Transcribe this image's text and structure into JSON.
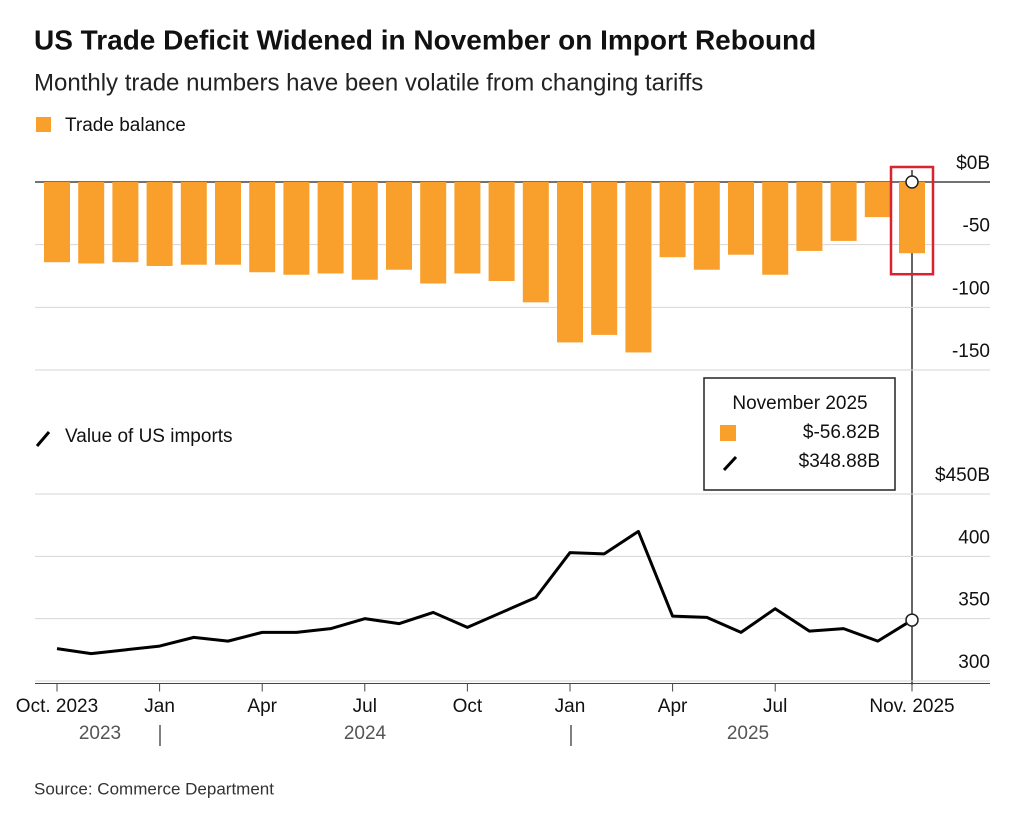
{
  "title": "US Trade Deficit Widened in November on Import Rebound",
  "subtitle": "Monthly trade numbers have been volatile from changing tariffs",
  "source": "Source: Commerce Department",
  "tooltip_title": "November 2025",
  "chart_data": [
    {
      "type": "bar",
      "series": [
        {
          "name": "Trade balance",
          "color": "#f9a02c",
          "values": [
            -64,
            -65,
            -64,
            -67,
            -66,
            -66,
            -72,
            -74,
            -73,
            -78,
            -70,
            -81,
            -73,
            -79,
            -96,
            -128,
            -122,
            -136,
            -60,
            -70,
            -58,
            -74,
            -55,
            -47,
            -28,
            -56.82
          ],
          "value_labels": [
            null,
            null,
            null,
            null,
            null,
            null,
            null,
            null,
            null,
            null,
            null,
            null,
            null,
            null,
            null,
            null,
            null,
            null,
            null,
            null,
            null,
            null,
            null,
            null,
            null,
            "$-56.82B"
          ]
        }
      ],
      "ylim": [
        -150,
        0
      ],
      "yticks": [
        {
          "value": 0,
          "label": "$0B"
        },
        -50,
        -100,
        -150
      ],
      "grid": true
    },
    {
      "type": "line",
      "categories": [
        "Oct. 2023",
        null,
        null,
        "Jan",
        null,
        null,
        "Apr",
        null,
        null,
        "Jul",
        null,
        null,
        "Oct",
        null,
        null,
        "Jan",
        null,
        null,
        "Apr",
        null,
        null,
        "Jul",
        null,
        null,
        null,
        "Nov. 2025"
      ],
      "year_labels": [
        "2023",
        "2024",
        "2025"
      ],
      "series": [
        {
          "name": "Value of US imports",
          "color": "#000000",
          "values": [
            326,
            322,
            325,
            328,
            335,
            332,
            339,
            339,
            342,
            350,
            346,
            355,
            343,
            355,
            367,
            403,
            402,
            420,
            352,
            351,
            339,
            358,
            340,
            342,
            332,
            348.88
          ],
          "value_labels": [
            null,
            null,
            null,
            null,
            null,
            null,
            null,
            null,
            null,
            null,
            null,
            null,
            null,
            null,
            null,
            null,
            null,
            null,
            null,
            null,
            null,
            null,
            null,
            null,
            null,
            "$348.88B"
          ]
        }
      ],
      "ylim": [
        298,
        450
      ],
      "yticks": [
        {
          "value": 450,
          "label": "$450B"
        },
        400,
        350,
        300
      ],
      "grid": true
    }
  ]
}
